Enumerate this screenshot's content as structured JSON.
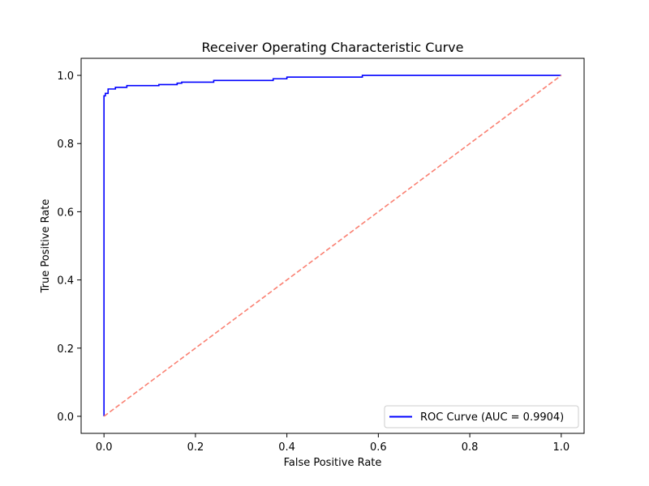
{
  "chart_data": {
    "type": "line",
    "title": "Receiver Operating Characteristic Curve",
    "xlabel": "False Positive Rate",
    "ylabel": "True Positive Rate",
    "xlim": [
      -0.05,
      1.05
    ],
    "ylim": [
      -0.05,
      1.05
    ],
    "xticks": [
      "0.0",
      "0.2",
      "0.4",
      "0.6",
      "0.8",
      "1.0"
    ],
    "yticks": [
      "0.0",
      "0.2",
      "0.4",
      "0.6",
      "0.8",
      "1.0"
    ],
    "grid": false,
    "legend_position": "bottom-right",
    "series": [
      {
        "name": "ROC Curve (AUC = 0.9904)",
        "color": "#0000ff",
        "style": "solid",
        "x": [
          0.0,
          0.0,
          0.003,
          0.003,
          0.009,
          0.009,
          0.025,
          0.025,
          0.05,
          0.05,
          0.12,
          0.12,
          0.16,
          0.16,
          0.17,
          0.17,
          0.24,
          0.24,
          0.37,
          0.37,
          0.4,
          0.4,
          0.565,
          0.565,
          1.0
        ],
        "y": [
          0.0,
          0.94,
          0.94,
          0.947,
          0.947,
          0.96,
          0.96,
          0.965,
          0.965,
          0.97,
          0.97,
          0.973,
          0.973,
          0.977,
          0.977,
          0.98,
          0.98,
          0.985,
          0.985,
          0.99,
          0.99,
          0.995,
          0.995,
          1.0,
          1.0
        ]
      },
      {
        "name": "",
        "color": "#fa8072",
        "style": "dashed",
        "x": [
          0.0,
          1.0
        ],
        "y": [
          0.0,
          1.0
        ]
      }
    ]
  }
}
